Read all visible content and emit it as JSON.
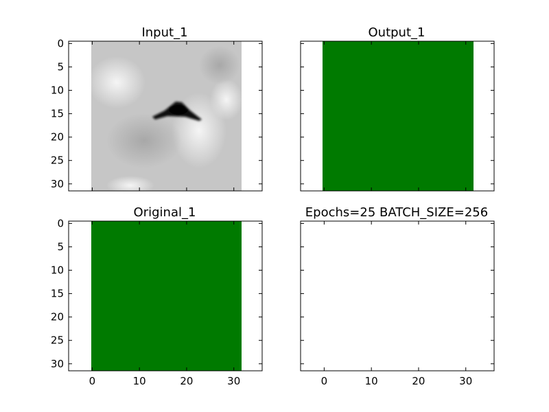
{
  "chart_data": [
    {
      "type": "heatmap",
      "title": "Input_1",
      "image": "grayscale",
      "colormap": "gray",
      "xlim": [
        -5,
        36
      ],
      "ylim": [
        31.5,
        -0.5
      ],
      "xticks": [],
      "yticks": [
        0,
        5,
        10,
        15,
        20,
        25,
        30
      ],
      "image_extent": [
        -0.5,
        31.5,
        31.5,
        -0.5
      ],
      "colors": {
        "background_gray": "#c4c4c4",
        "light_gray": "#f2f2f2",
        "dark": "#000000"
      }
    },
    {
      "type": "heatmap",
      "title": "Output_1",
      "image": "solid-green",
      "xlim": [
        -5,
        36
      ],
      "ylim": [
        31.5,
        -0.5
      ],
      "xticks": [],
      "yticks": [],
      "image_extent": [
        -0.5,
        31.5,
        31.5,
        -0.5
      ],
      "colors": {
        "fill": "#007a00"
      }
    },
    {
      "type": "heatmap",
      "title": "Original_1",
      "image": "solid-green",
      "xlim": [
        -5,
        36
      ],
      "ylim": [
        31.5,
        -0.5
      ],
      "xticks": [
        0,
        10,
        20,
        30
      ],
      "yticks": [
        0,
        5,
        10,
        15,
        20,
        25,
        30
      ],
      "image_extent": [
        -0.5,
        31.5,
        31.5,
        -0.5
      ],
      "colors": {
        "fill": "#007a00"
      }
    },
    {
      "type": "heatmap",
      "title": "Epochs=25 BATCH_SIZE=256",
      "image": "empty",
      "xlim": [
        -5,
        36
      ],
      "ylim": [
        31.5,
        -0.5
      ],
      "xticks": [
        0,
        10,
        20,
        30
      ],
      "yticks": []
    }
  ]
}
